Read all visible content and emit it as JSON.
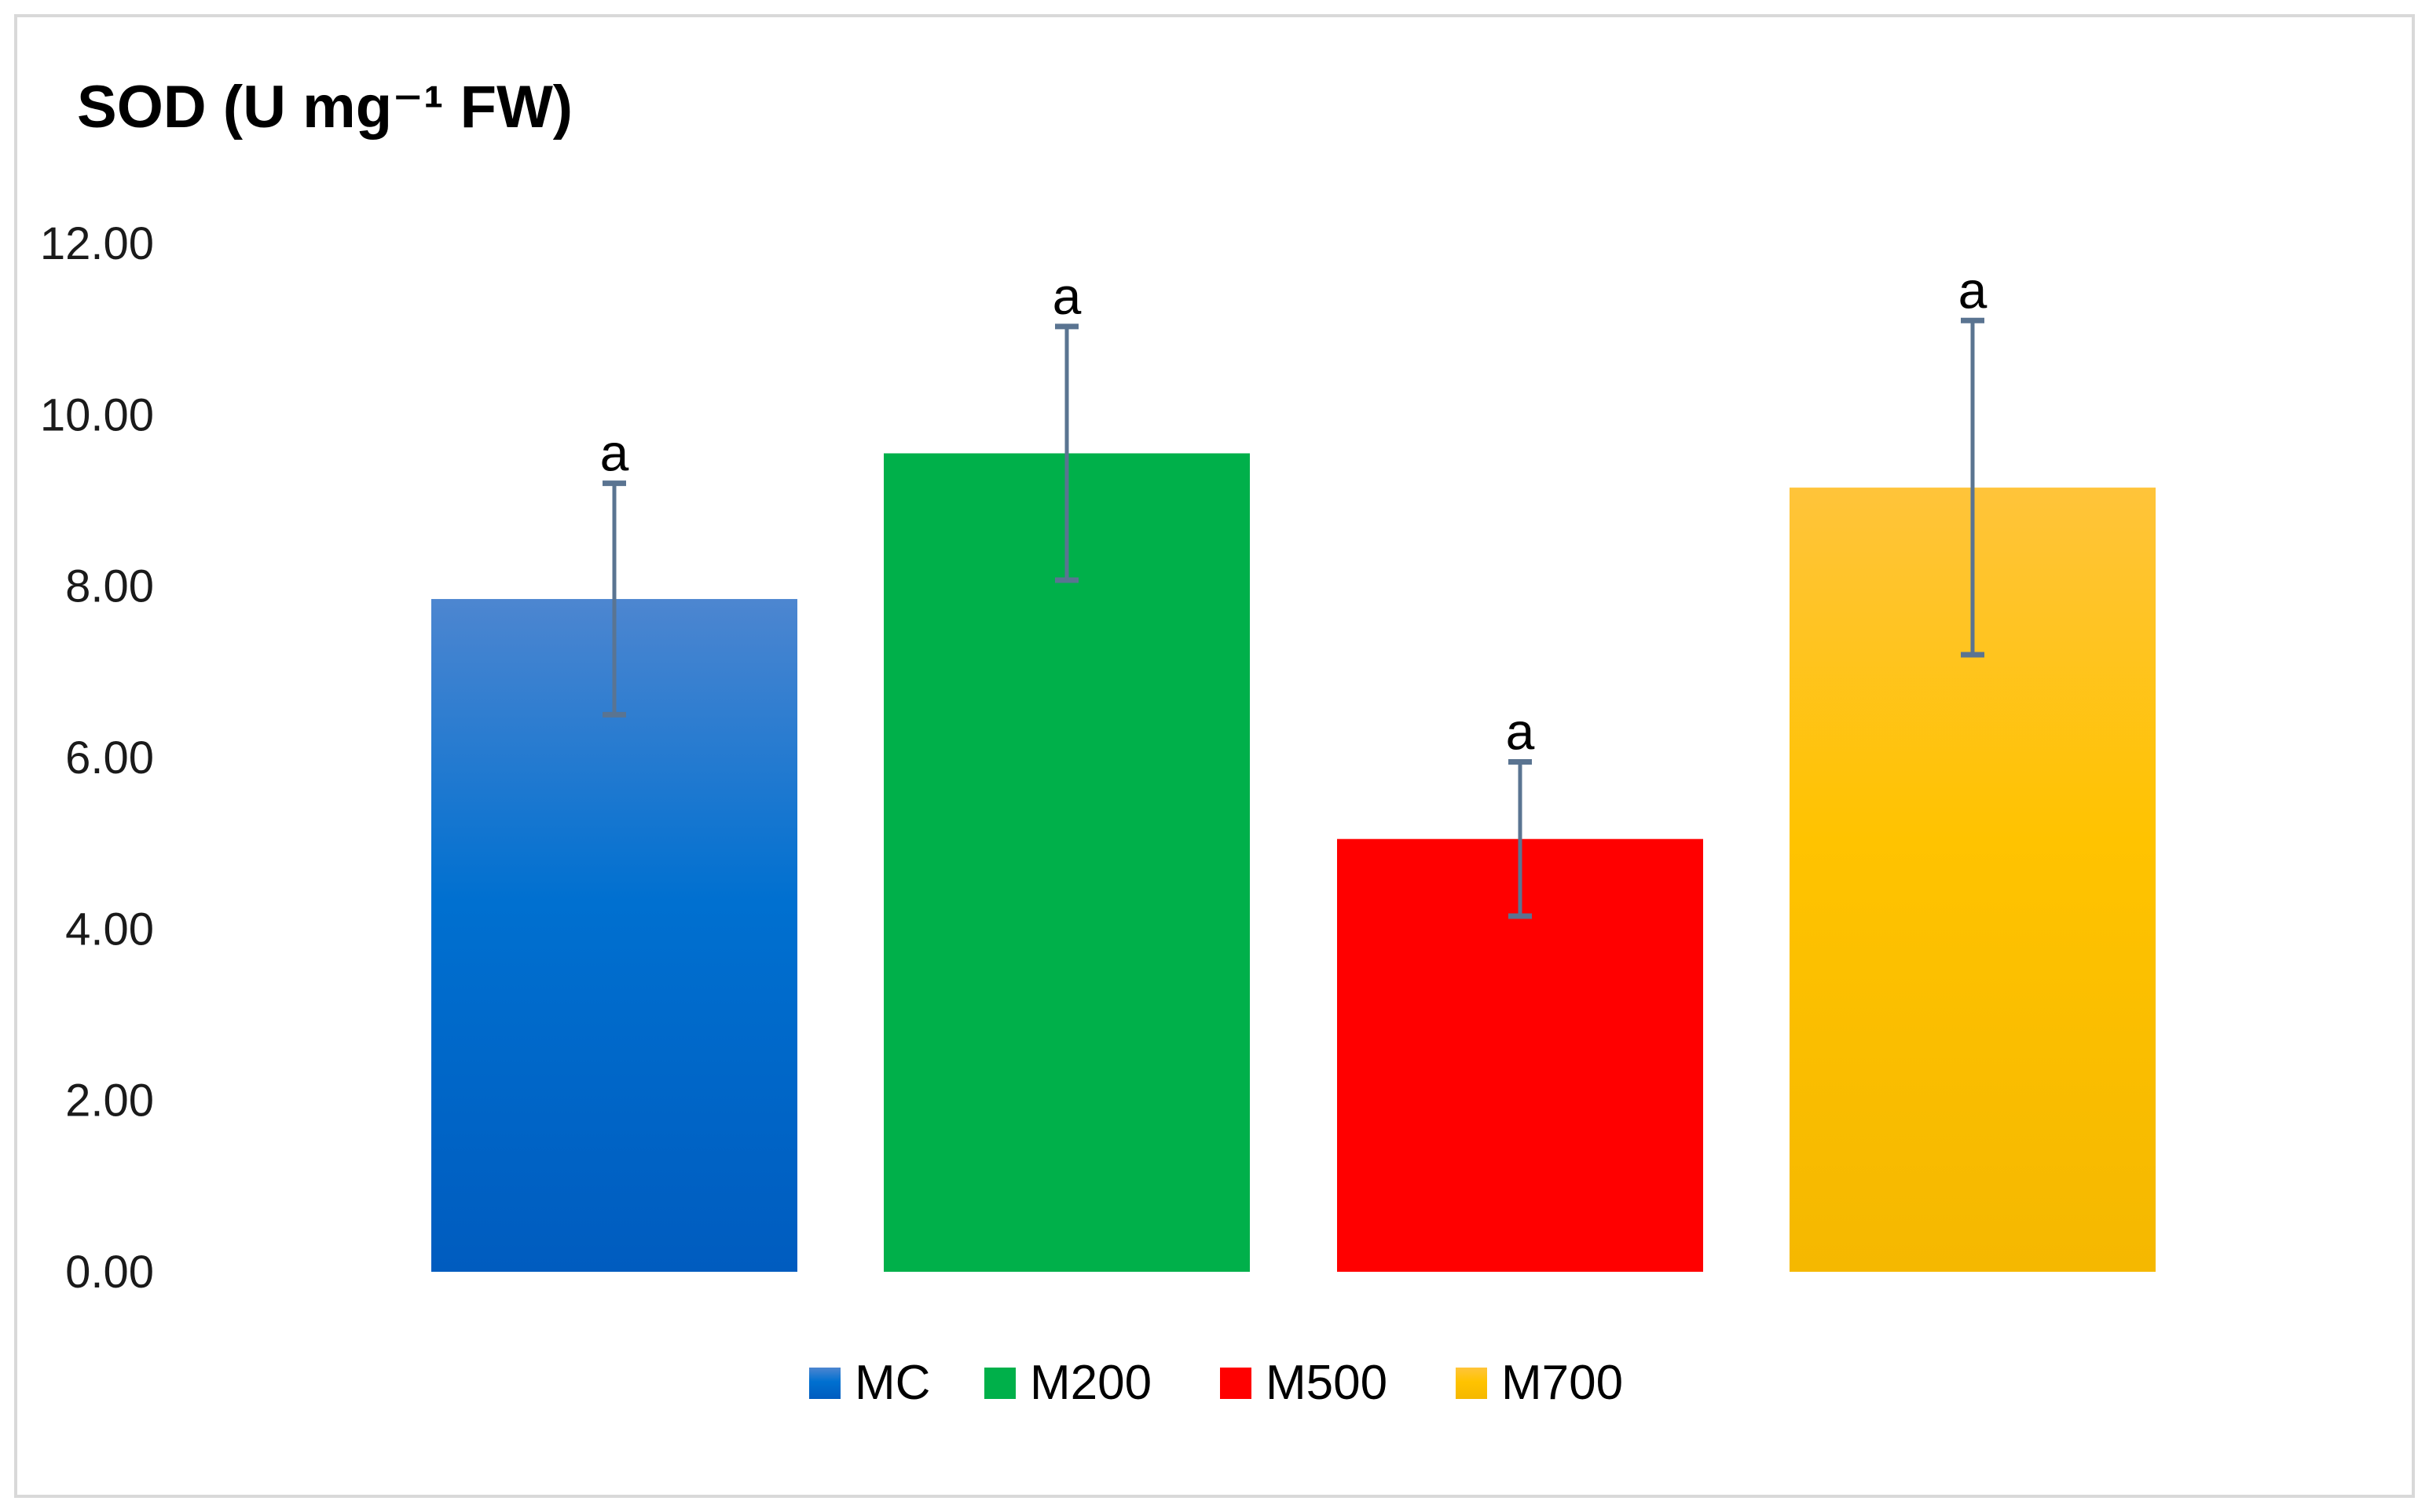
{
  "chart_data": {
    "type": "bar",
    "title": "SOD (U mg⁻¹ FW)",
    "xlabel": "",
    "ylabel": "",
    "categories": [
      "MC",
      "M200",
      "M500",
      "M700"
    ],
    "values": [
      7.85,
      9.55,
      5.05,
      9.15
    ],
    "error_bars": [
      1.35,
      1.48,
      0.9,
      1.95
    ],
    "significance_labels": [
      "a",
      "a",
      "a",
      "a"
    ],
    "ylim": [
      0,
      12
    ],
    "yticks": [
      "0.00",
      "2.00",
      "4.00",
      "6.00",
      "8.00",
      "10.00",
      "12.00"
    ],
    "grid": false,
    "legend": {
      "position": "bottom",
      "entries": [
        "MC",
        "M200",
        "M500",
        "M700"
      ]
    },
    "colors": {
      "MC": {
        "top": "#4d86d0",
        "mid": "#0070d0",
        "bottom": "#005cbf"
      },
      "M200": {
        "top": "#00b04a",
        "mid": "#00b04a",
        "bottom": "#00b04a"
      },
      "M500": {
        "top": "#ff0000",
        "mid": "#ff0000",
        "bottom": "#ff0000"
      },
      "M700": {
        "top": "#ffc43a",
        "mid": "#ffc300",
        "bottom": "#f5b800"
      },
      "error_bar": "#5a7491",
      "frame_border": "#d9d9d9"
    }
  }
}
